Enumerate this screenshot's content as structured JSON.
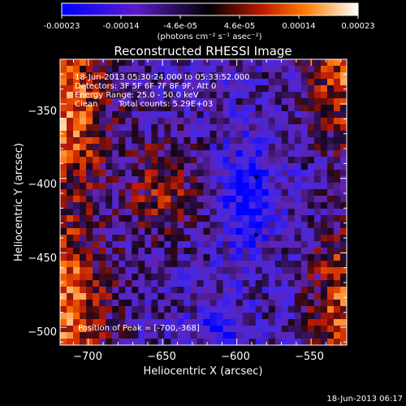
{
  "colorbar": {
    "tick_labels": [
      "-0.00023",
      "-0.00014",
      "-4.6e-05",
      "4.6e-05",
      "0.00014",
      "0.00023"
    ],
    "unit_label": "(photons cm⁻² s⁻¹ asec⁻²)",
    "range": [
      -0.00023,
      0.00023
    ]
  },
  "chart_data": {
    "type": "heatmap",
    "title": "Reconstructed RHESSI Image",
    "xlabel": "Heliocentric X (arcsec)",
    "ylabel": "Heliocentric Y (arcsec)",
    "xlim": [
      -719,
      -526
    ],
    "ylim": [
      -512,
      -320
    ],
    "x_ticks": [
      -700,
      -650,
      -600,
      -550
    ],
    "y_ticks": [
      -350,
      -400,
      -450,
      -500
    ],
    "x_tick_labels": [
      "−700",
      "−650",
      "−600",
      "−550"
    ],
    "y_tick_labels": [
      "−350",
      "−400",
      "−450",
      "−500"
    ],
    "annotations": [
      "18-Jun-2013 05:30:24.000 to 05:33:52.000",
      "Detectors: 3F 5F 6F 7F 8F 9F, Att 0",
      "Energy Range: 25.0 - 50.0 keV",
      "Clean",
      "Total counts: 5.29E+03"
    ],
    "peak_label": "Position of Peak = [-700,-368]",
    "peak_position": [
      -700,
      -368
    ],
    "minimum_markers": [
      [
        -587,
        -399
      ],
      [
        -587,
        -438
      ]
    ]
  },
  "footer": {
    "timestamp": "18-Jun-2013 06:17"
  }
}
